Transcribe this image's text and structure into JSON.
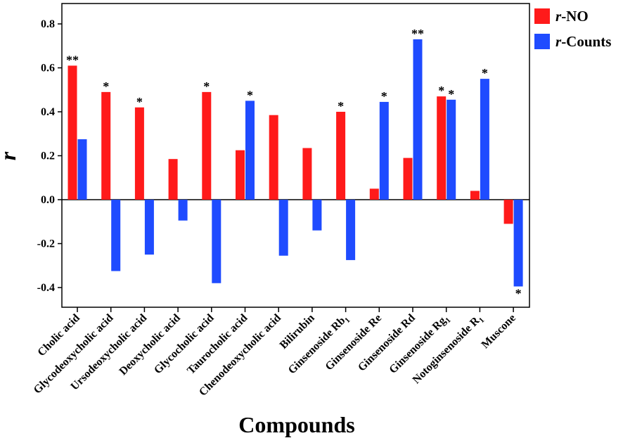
{
  "chart_data": {
    "type": "bar",
    "title": "",
    "xlabel": "Compounds",
    "ylabel": "r",
    "ylim": [
      -0.5,
      0.9
    ],
    "yticks": [
      -0.4,
      -0.2,
      0.0,
      0.2,
      0.4,
      0.6,
      0.8
    ],
    "ytick_labels": [
      "-0.4",
      "-0.2",
      "0.0",
      "0.2",
      "0.4",
      "0.6",
      "0.8"
    ],
    "grid": false,
    "legend_position": "top-right",
    "categories": [
      {
        "name": "Cholic acid"
      },
      {
        "name": "Glycodeoxycholic acid"
      },
      {
        "name": "Ursodeoxycholic acid"
      },
      {
        "name": "Deoxycholic acid"
      },
      {
        "name": "Glycocholic acid"
      },
      {
        "name": "Taurocholic acid"
      },
      {
        "name": "Chenodeoxycholic acid"
      },
      {
        "name": "Bilirubin"
      },
      {
        "name": "Ginsenoside Rb",
        "sub": "1"
      },
      {
        "name": "Ginsenoside Re"
      },
      {
        "name": "Ginsenoside Rd"
      },
      {
        "name": "Ginsenoside Rg",
        "sub": "1"
      },
      {
        "name": "Notoginsenoside R",
        "sub": "1"
      },
      {
        "name": "Muscone"
      }
    ],
    "series": [
      {
        "name": "r-NO",
        "label_italic": "r",
        "label_rest": "-NO",
        "color": "#ff1a1a",
        "values": [
          0.61,
          0.49,
          0.42,
          0.185,
          0.49,
          0.225,
          0.385,
          0.235,
          0.4,
          0.05,
          0.19,
          0.47,
          0.04,
          -0.11
        ],
        "significance": [
          "**",
          "*",
          "*",
          "",
          "*",
          "",
          "",
          "",
          "*",
          "",
          "",
          "*",
          "",
          ""
        ]
      },
      {
        "name": "r-Counts",
        "label_italic": "r",
        "label_rest": "-Counts",
        "color": "#1f4bff",
        "values": [
          0.275,
          -0.325,
          -0.25,
          -0.095,
          -0.38,
          0.45,
          -0.255,
          -0.14,
          -0.275,
          0.445,
          0.73,
          0.455,
          0.55,
          -0.395
        ],
        "significance": [
          "",
          "",
          "",
          "",
          "",
          "*",
          "",
          "",
          "",
          "*",
          "**",
          "*",
          "*",
          "*"
        ]
      }
    ]
  }
}
